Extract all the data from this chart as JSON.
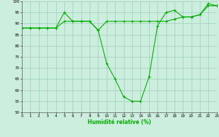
{
  "xlabel": "Humidité relative (%)",
  "background_color": "#cceedd",
  "grid_color": "#99ccbb",
  "line_color": "#00aa00",
  "marker": "+",
  "x_min": 0,
  "x_max": 23,
  "y_min": 50,
  "y_max": 100,
  "x_ticks": [
    0,
    1,
    2,
    3,
    4,
    5,
    6,
    7,
    8,
    9,
    10,
    11,
    12,
    13,
    14,
    15,
    16,
    17,
    18,
    19,
    20,
    21,
    22,
    23
  ],
  "y_ticks": [
    50,
    55,
    60,
    65,
    70,
    75,
    80,
    85,
    90,
    95,
    100
  ],
  "series1": [
    88,
    88,
    88,
    88,
    88,
    91,
    91,
    91,
    91,
    87,
    91,
    91,
    91,
    91,
    91,
    91,
    91,
    91,
    92,
    93,
    93,
    94,
    98,
    98
  ],
  "series2": [
    88,
    88,
    88,
    88,
    88,
    95,
    91,
    91,
    91,
    87,
    72,
    65,
    57,
    55,
    55,
    66,
    89,
    95,
    96,
    93,
    93,
    94,
    99,
    98
  ]
}
